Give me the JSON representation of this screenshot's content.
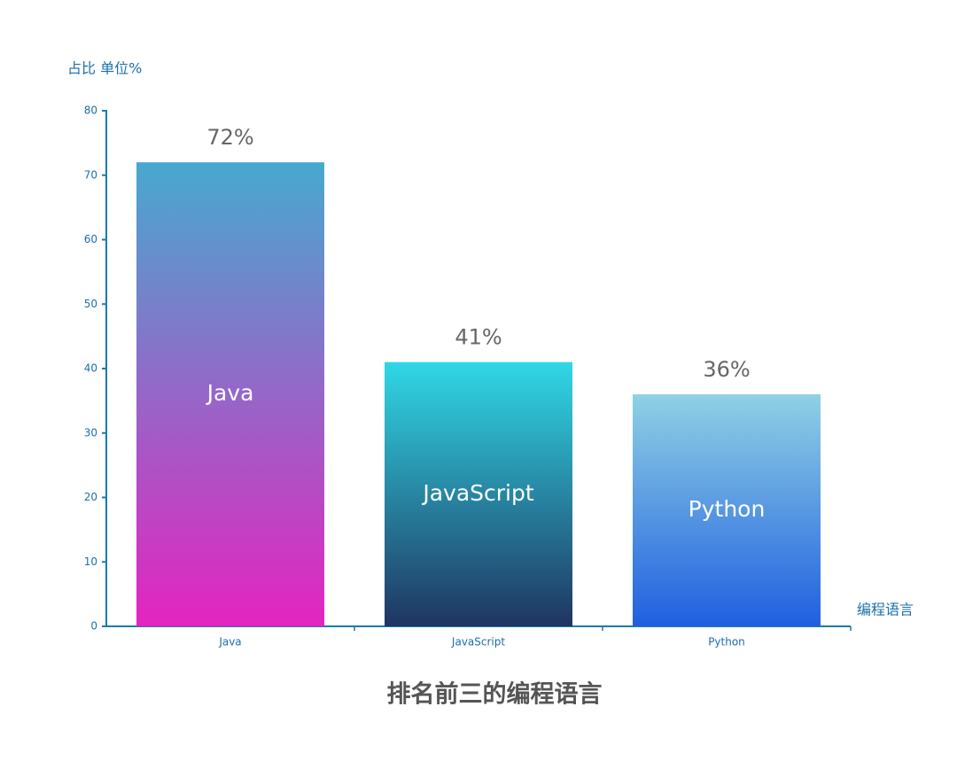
{
  "chart_data": {
    "type": "bar",
    "title": "排名前三的编程语言",
    "y_label": "占比 单位%",
    "x_label": "编程语言",
    "categories": [
      "Java",
      "JavaScript",
      "Python"
    ],
    "values": [
      72,
      41,
      36
    ],
    "value_labels": [
      "72%",
      "41%",
      "36%"
    ],
    "colors": [
      {
        "top": "#47a9cf",
        "bottom": "#e424c0"
      },
      {
        "top": "#30d8e6",
        "bottom": "#1f3560"
      },
      {
        "top": "#90d1e4",
        "bottom": "#1f5fe0"
      }
    ],
    "ylim": [
      0,
      80
    ],
    "yticks": [
      0,
      10,
      20,
      30,
      40,
      50,
      60,
      70,
      80
    ],
    "grid": false
  }
}
